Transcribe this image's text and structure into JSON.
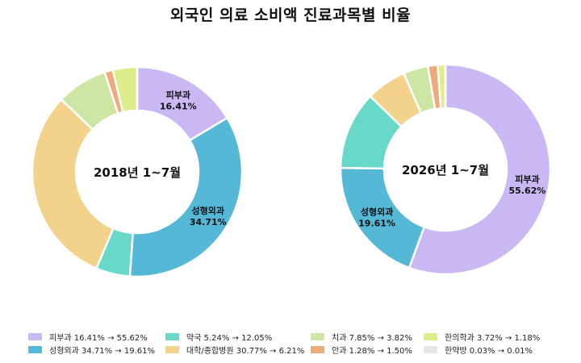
{
  "title": "외국인 의료 소비액 진료과목별 비율",
  "chart_data": [
    {
      "type": "donut",
      "center_label": "2018년 1~7월",
      "categories": [
        "피부과",
        "성형외과",
        "약국",
        "대학/종합병원",
        "치과",
        "안과",
        "한의학과",
        "한약방"
      ],
      "values": [
        16.41,
        34.71,
        5.24,
        30.77,
        7.85,
        1.28,
        3.72,
        0.03
      ],
      "slice_labels": [
        {
          "category": "피부과",
          "name": "피부과",
          "value": "16.41%"
        },
        {
          "category": "성형외과",
          "name": "성형외과",
          "value": "34.71%"
        }
      ]
    },
    {
      "type": "donut",
      "center_label": "2026년 1~7월",
      "categories": [
        "피부과",
        "성형외과",
        "약국",
        "대학/종합병원",
        "치과",
        "안과",
        "한의학과",
        "한약방"
      ],
      "values": [
        55.62,
        19.61,
        12.05,
        6.21,
        3.82,
        1.5,
        1.18,
        0.01
      ],
      "slice_labels": [
        {
          "category": "피부과",
          "name": "피부과",
          "value": "55.62%"
        },
        {
          "category": "성형외과",
          "name": "성형외과",
          "value": "19.61%"
        }
      ]
    }
  ],
  "colors": {
    "피부과": "#c9b8f4",
    "성형외과": "#55b8d6",
    "약국": "#68d8c8",
    "대학/종합병원": "#f3d38c",
    "치과": "#cde6a3",
    "안과": "#eeaa7b",
    "한의학과": "#dfec8a",
    "한약방": "#e6e6e6"
  },
  "legend": [
    {
      "category": "피부과",
      "text": "피부과 16.41% → 55.62%"
    },
    {
      "category": "성형외과",
      "text": "성형외과 34.71% → 19.61%"
    },
    {
      "category": "약국",
      "text": "약국 5.24% → 12.05%"
    },
    {
      "category": "대학/종합병원",
      "text": "대학/종합병원 30.77% → 6.21%"
    },
    {
      "category": "치과",
      "text": "치과 7.85% → 3.82%"
    },
    {
      "category": "안과",
      "text": "안과 1.28% → 1.50%"
    },
    {
      "category": "한의학과",
      "text": "한의학과 3.72% → 1.18%"
    },
    {
      "category": "한약방",
      "text": "한약방 0.03% → 0.01%"
    }
  ]
}
